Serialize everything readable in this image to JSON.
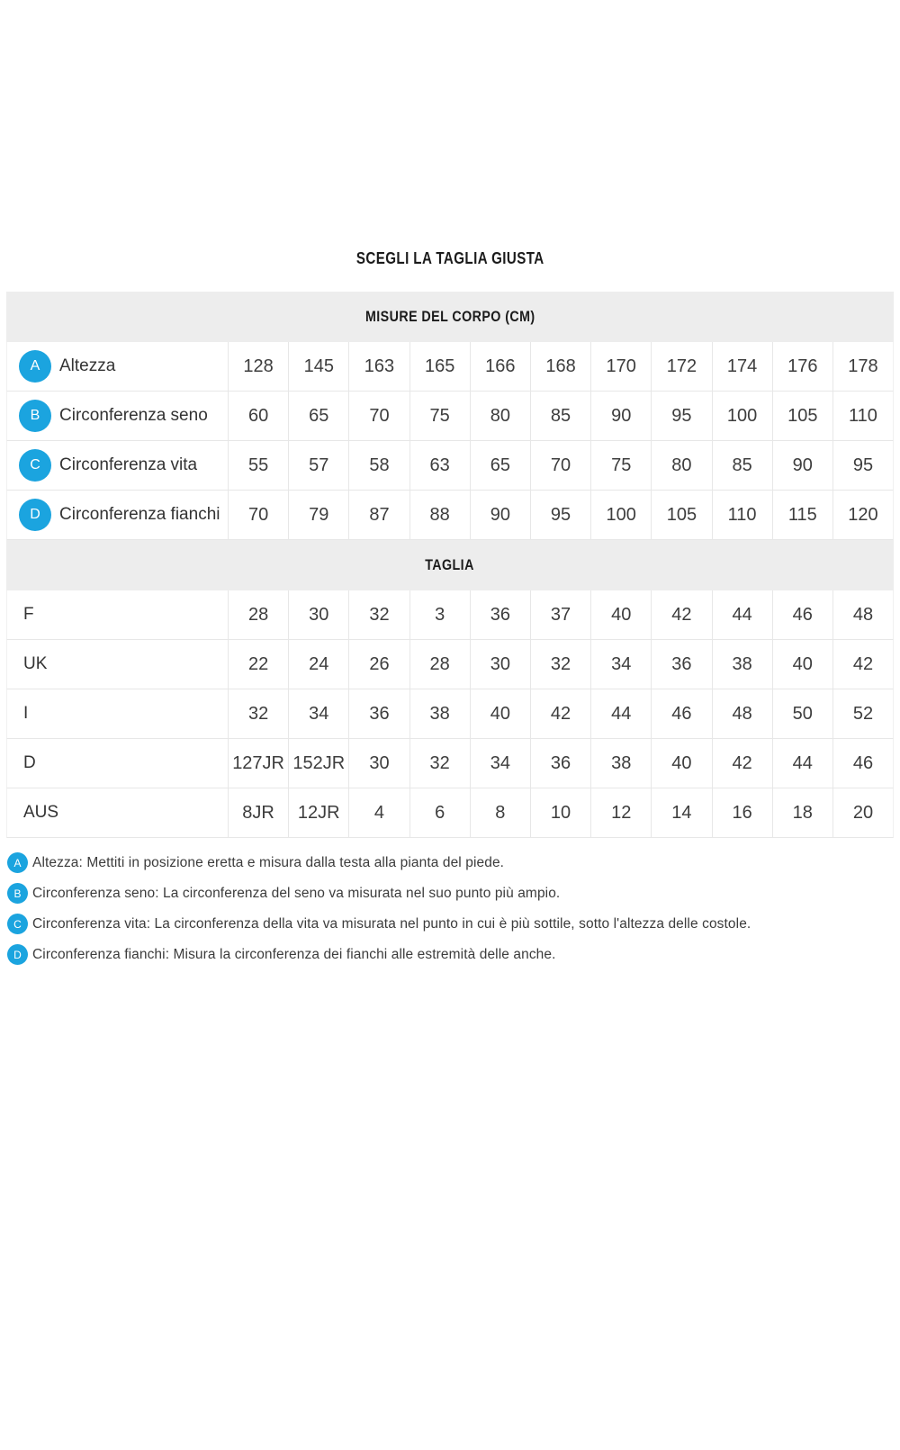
{
  "page": {
    "title": "SCEGLI LA TAGLIA GIUSTA"
  },
  "accent_color": "#1ba4df",
  "body_measures": {
    "header": "MISURE DEL CORPO (CM)",
    "rows": [
      {
        "badge": "A",
        "label": "Altezza",
        "values": [
          "128",
          "145",
          "163",
          "165",
          "166",
          "168",
          "170",
          "172",
          "174",
          "176",
          "178"
        ]
      },
      {
        "badge": "B",
        "label": "Circonferenza seno",
        "values": [
          "60",
          "65",
          "70",
          "75",
          "80",
          "85",
          "90",
          "95",
          "100",
          "105",
          "110"
        ]
      },
      {
        "badge": "C",
        "label": "Circonferenza vita",
        "values": [
          "55",
          "57",
          "58",
          "63",
          "65",
          "70",
          "75",
          "80",
          "85",
          "90",
          "95"
        ]
      },
      {
        "badge": "D",
        "label": "Circonferenza fianchi",
        "values": [
          "70",
          "79",
          "87",
          "88",
          "90",
          "95",
          "100",
          "105",
          "110",
          "115",
          "120"
        ]
      }
    ]
  },
  "sizes": {
    "header": "TAGLIA",
    "rows": [
      {
        "label": "F",
        "values": [
          "28",
          "30",
          "32",
          "3",
          "36",
          "37",
          "40",
          "42",
          "44",
          "46",
          "48"
        ]
      },
      {
        "label": "UK",
        "values": [
          "22",
          "24",
          "26",
          "28",
          "30",
          "32",
          "34",
          "36",
          "38",
          "40",
          "42"
        ]
      },
      {
        "label": "I",
        "values": [
          "32",
          "34",
          "36",
          "38",
          "40",
          "42",
          "44",
          "46",
          "48",
          "50",
          "52"
        ]
      },
      {
        "label": "D",
        "values": [
          "127JR",
          "152JR",
          "30",
          "32",
          "34",
          "36",
          "38",
          "40",
          "42",
          "44",
          "46"
        ]
      },
      {
        "label": "AUS",
        "values": [
          "8JR",
          "12JR",
          "4",
          "6",
          "8",
          "10",
          "12",
          "14",
          "16",
          "18",
          "20"
        ]
      }
    ]
  },
  "footnotes": [
    {
      "badge": "A",
      "text": "Altezza: Mettiti in posizione eretta e misura dalla testa alla pianta del piede."
    },
    {
      "badge": "B",
      "text": "Circonferenza seno: La circonferenza del seno va misurata nel suo punto più ampio."
    },
    {
      "badge": "C",
      "text": "Circonferenza vita: La circonferenza della vita va misurata nel punto in cui è più sottile, sotto l'altezza delle costole."
    },
    {
      "badge": "D",
      "text": "Circonferenza fianchi: Misura la circonferenza dei fianchi alle estremità delle anche."
    }
  ],
  "chart_data": [
    {
      "type": "table",
      "title": "MISURE DEL CORPO (CM)",
      "row_headers": [
        "Altezza",
        "Circonferenza seno",
        "Circonferenza vita",
        "Circonferenza fianchi"
      ],
      "rows": [
        [
          128,
          145,
          163,
          165,
          166,
          168,
          170,
          172,
          174,
          176,
          178
        ],
        [
          60,
          65,
          70,
          75,
          80,
          85,
          90,
          95,
          100,
          105,
          110
        ],
        [
          55,
          57,
          58,
          63,
          65,
          70,
          75,
          80,
          85,
          90,
          95
        ],
        [
          70,
          79,
          87,
          88,
          90,
          95,
          100,
          105,
          110,
          115,
          120
        ]
      ]
    },
    {
      "type": "table",
      "title": "TAGLIA",
      "row_headers": [
        "F",
        "UK",
        "I",
        "D",
        "AUS"
      ],
      "rows": [
        [
          "28",
          "30",
          "32",
          "3",
          "36",
          "37",
          "40",
          "42",
          "44",
          "46",
          "48"
        ],
        [
          "22",
          "24",
          "26",
          "28",
          "30",
          "32",
          "34",
          "36",
          "38",
          "40",
          "42"
        ],
        [
          "32",
          "34",
          "36",
          "38",
          "40",
          "42",
          "44",
          "46",
          "48",
          "50",
          "52"
        ],
        [
          "127JR",
          "152JR",
          "30",
          "32",
          "34",
          "36",
          "38",
          "40",
          "42",
          "44",
          "46"
        ],
        [
          "8JR",
          "12JR",
          "4",
          "6",
          "8",
          "10",
          "12",
          "14",
          "16",
          "18",
          "20"
        ]
      ]
    }
  ]
}
